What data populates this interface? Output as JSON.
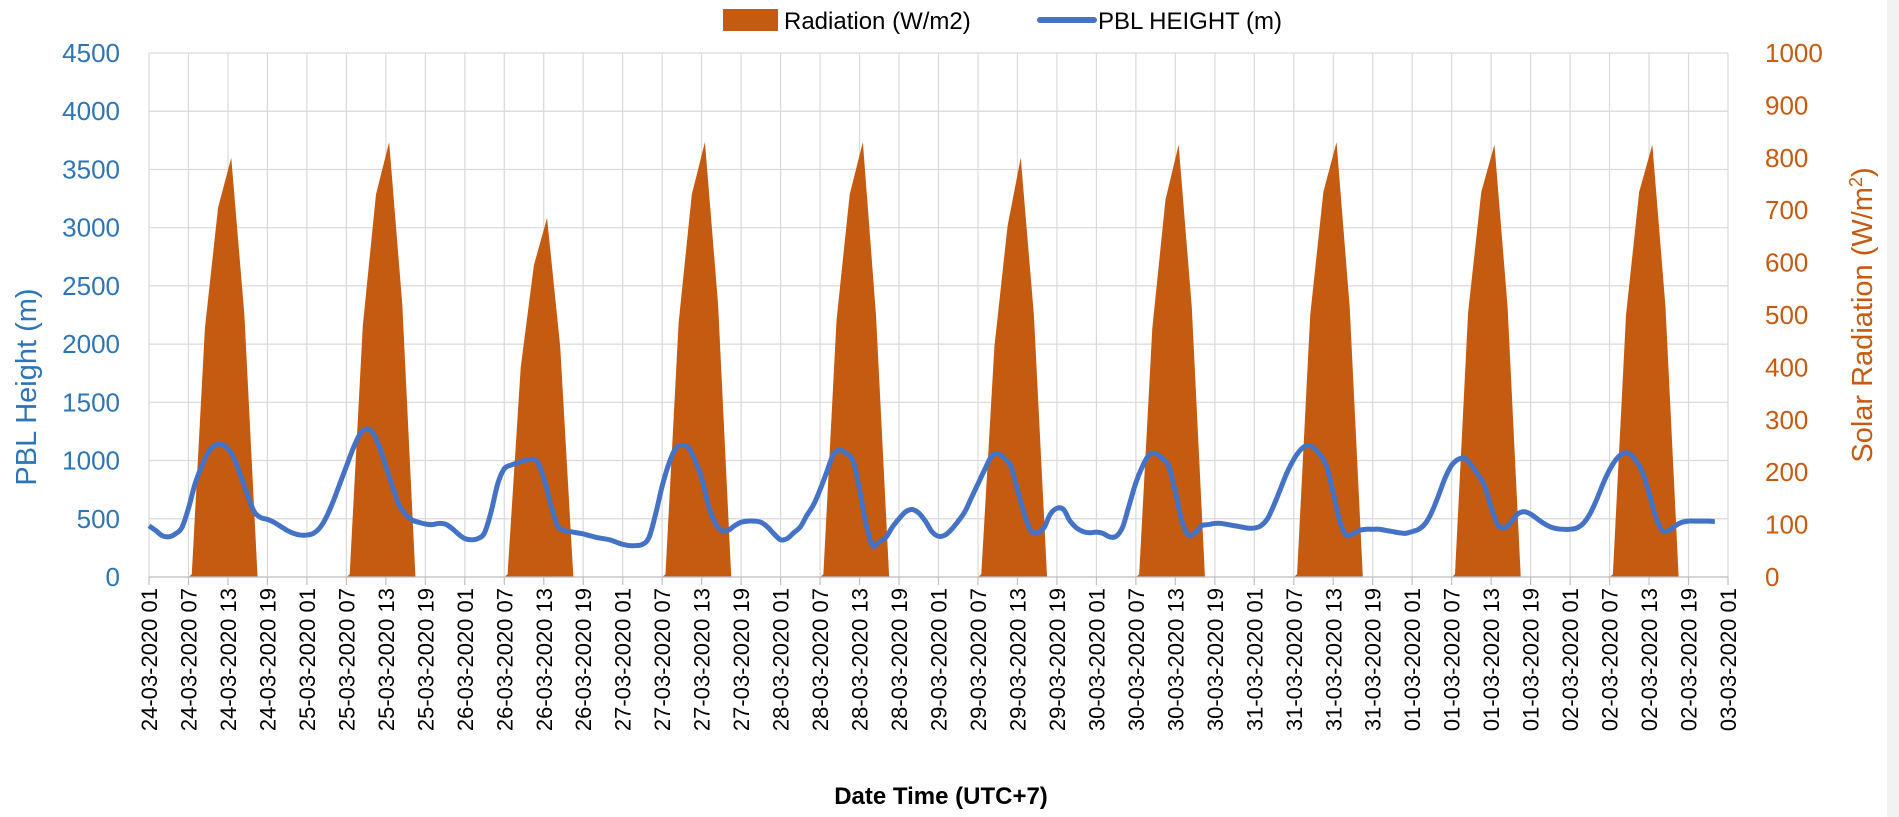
{
  "chart_data": {
    "type": "area+line",
    "colors": {
      "radiation": "#c55a11",
      "pbl": "#4472c4",
      "left_axis": "#2e75b6",
      "right_axis": "#c55a11"
    },
    "legend": {
      "placement": "top-center",
      "radiation_label": "Radiation (W/m2)",
      "pbl_label": "PBL HEIGHT (m)"
    },
    "xlabel": "Date Time (UTC+7)",
    "ylabel_left": "PBL Height (m)",
    "ylabel_right": {
      "text": "Solar Radiation (W/m",
      "sup": "2",
      "close": ")"
    },
    "ylim_left": [
      0,
      4500
    ],
    "ylim_right": [
      0,
      1000
    ],
    "left_ticks": [
      "0",
      "500",
      "1000",
      "1500",
      "2000",
      "2500",
      "3000",
      "3500",
      "4000",
      "4500"
    ],
    "right_ticks": [
      "0",
      "100",
      "200",
      "300",
      "400",
      "500",
      "600",
      "700",
      "800",
      "900",
      "1000"
    ],
    "grid": true,
    "x_tick_labels": [
      "24-03-2020 01",
      "24-03-2020 07",
      "24-03-2020 13",
      "24-03-2020 19",
      "25-03-2020 01",
      "25-03-2020 07",
      "25-03-2020 13",
      "25-03-2020 19",
      "26-03-2020 01",
      "26-03-2020 07",
      "26-03-2020 13",
      "26-03-2020 19",
      "27-03-2020 01",
      "27-03-2020 07",
      "27-03-2020 13",
      "27-03-2020 19",
      "28-03-2020 01",
      "28-03-2020 07",
      "28-03-2020 13",
      "28-03-2020 19",
      "29-03-2020 01",
      "29-03-2020 07",
      "29-03-2020 13",
      "29-03-2020 19",
      "30-03-2020 01",
      "30-03-2020 07",
      "30-03-2020 13",
      "30-03-2020 19",
      "31-03-2020 01",
      "31-03-2020 07",
      "31-03-2020 13",
      "31-03-2020 19",
      "01-03-2020 01",
      "01-03-2020 07",
      "01-03-2020 13",
      "01-03-2020 19",
      "02-03-2020 01",
      "02-03-2020 07",
      "02-03-2020 13",
      "02-03-2020 19",
      "03-03-2020 01"
    ],
    "radiation_days": [
      [
        0,
        5,
        475,
        705,
        800,
        500,
        0
      ],
      [
        0,
        5,
        480,
        730,
        830,
        520,
        0
      ],
      [
        0,
        5,
        400,
        595,
        685,
        440,
        0
      ],
      [
        0,
        5,
        485,
        730,
        830,
        520,
        0
      ],
      [
        0,
        5,
        490,
        730,
        830,
        500,
        0
      ],
      [
        0,
        5,
        440,
        670,
        800,
        500,
        0
      ],
      [
        0,
        5,
        475,
        720,
        825,
        515,
        0
      ],
      [
        0,
        5,
        500,
        735,
        830,
        515,
        0
      ],
      [
        0,
        5,
        505,
        735,
        825,
        515,
        0
      ],
      [
        0,
        5,
        500,
        735,
        825,
        515,
        0
      ]
    ],
    "pbl_hourly": [
      440,
      400,
      355,
      345,
      370,
      425,
      590,
      800,
      950,
      1070,
      1130,
      1140,
      1100,
      1010,
      860,
      700,
      560,
      510,
      495,
      470,
      435,
      400,
      375,
      360,
      360,
      375,
      425,
      520,
      650,
      800,
      950,
      1100,
      1220,
      1270,
      1240,
      1120,
      950,
      780,
      620,
      540,
      490,
      470,
      455,
      450,
      460,
      455,
      420,
      370,
      330,
      320,
      330,
      380,
      560,
      800,
      930,
      960,
      980,
      1000,
      1010,
      990,
      850,
      640,
      450,
      400,
      390,
      380,
      370,
      355,
      340,
      330,
      320,
      300,
      280,
      270,
      270,
      280,
      340,
      540,
      780,
      970,
      1100,
      1130,
      1110,
      1000,
      850,
      620,
      470,
      400,
      400,
      440,
      470,
      480,
      480,
      470,
      430,
      370,
      320,
      330,
      380,
      430,
      530,
      620,
      750,
      900,
      1050,
      1090,
      1060,
      1000,
      750,
      450,
      270,
      300,
      340,
      430,
      500,
      560,
      580,
      550,
      480,
      390,
      350,
      360,
      410,
      480,
      560,
      680,
      800,
      920,
      1030,
      1060,
      1020,
      950,
      750,
      550,
      400,
      380,
      420,
      540,
      590,
      580,
      480,
      420,
      390,
      380,
      385,
      375,
      345,
      350,
      430,
      620,
      810,
      950,
      1050,
      1060,
      1020,
      950,
      730,
      480,
      360,
      380,
      440,
      450,
      460,
      460,
      450,
      440,
      430,
      420,
      420,
      440,
      500,
      620,
      760,
      900,
      1010,
      1090,
      1130,
      1110,
      1050,
      950,
      720,
      480,
      360,
      370,
      400,
      410,
      410,
      410,
      400,
      390,
      380,
      375,
      390,
      410,
      460,
      560,
      700,
      850,
      960,
      1010,
      1020,
      960,
      880,
      780,
      600,
      450,
      420,
      470,
      540,
      560,
      540,
      500,
      460,
      430,
      415,
      410,
      410,
      420,
      460,
      540,
      660,
      800,
      920,
      1010,
      1060,
      1060,
      1000,
      900,
      720,
      520,
      400,
      400,
      440,
      470,
      480,
      480,
      480,
      480,
      475
    ]
  }
}
